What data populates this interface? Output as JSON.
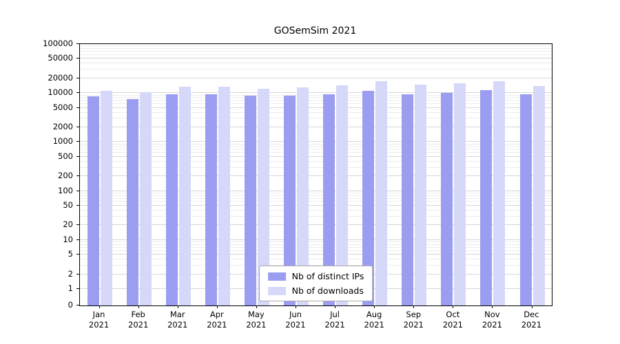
{
  "chart_data": {
    "type": "bar",
    "title": "GOSemSim 2021",
    "x_tick_months": [
      "Jan",
      "Feb",
      "Mar",
      "Apr",
      "May",
      "Jun",
      "Jul",
      "Aug",
      "Sep",
      "Oct",
      "Nov",
      "Dec"
    ],
    "x_tick_year": "2021",
    "y_ticks": [
      0,
      1,
      2,
      5,
      10,
      20,
      50,
      100,
      200,
      500,
      1000,
      2000,
      5000,
      10000,
      20000,
      50000,
      100000
    ],
    "y_scale": "log",
    "ylim": [
      0,
      100000
    ],
    "grid": "horizontal-log-minor",
    "legend_position": "bottom-center-inside",
    "series": [
      {
        "name": "Nb of distinct IPs",
        "color": "#9b9ef0",
        "values": [
          8600,
          7600,
          9400,
          9500,
          8800,
          9000,
          9400,
          11000,
          9500,
          10200,
          11300,
          9400
        ]
      },
      {
        "name": "Nb of downloads",
        "color": "#d6d8fa",
        "values": [
          11200,
          10400,
          13500,
          13600,
          12400,
          13000,
          14200,
          17200,
          15100,
          15800,
          17200,
          13800
        ]
      }
    ]
  }
}
